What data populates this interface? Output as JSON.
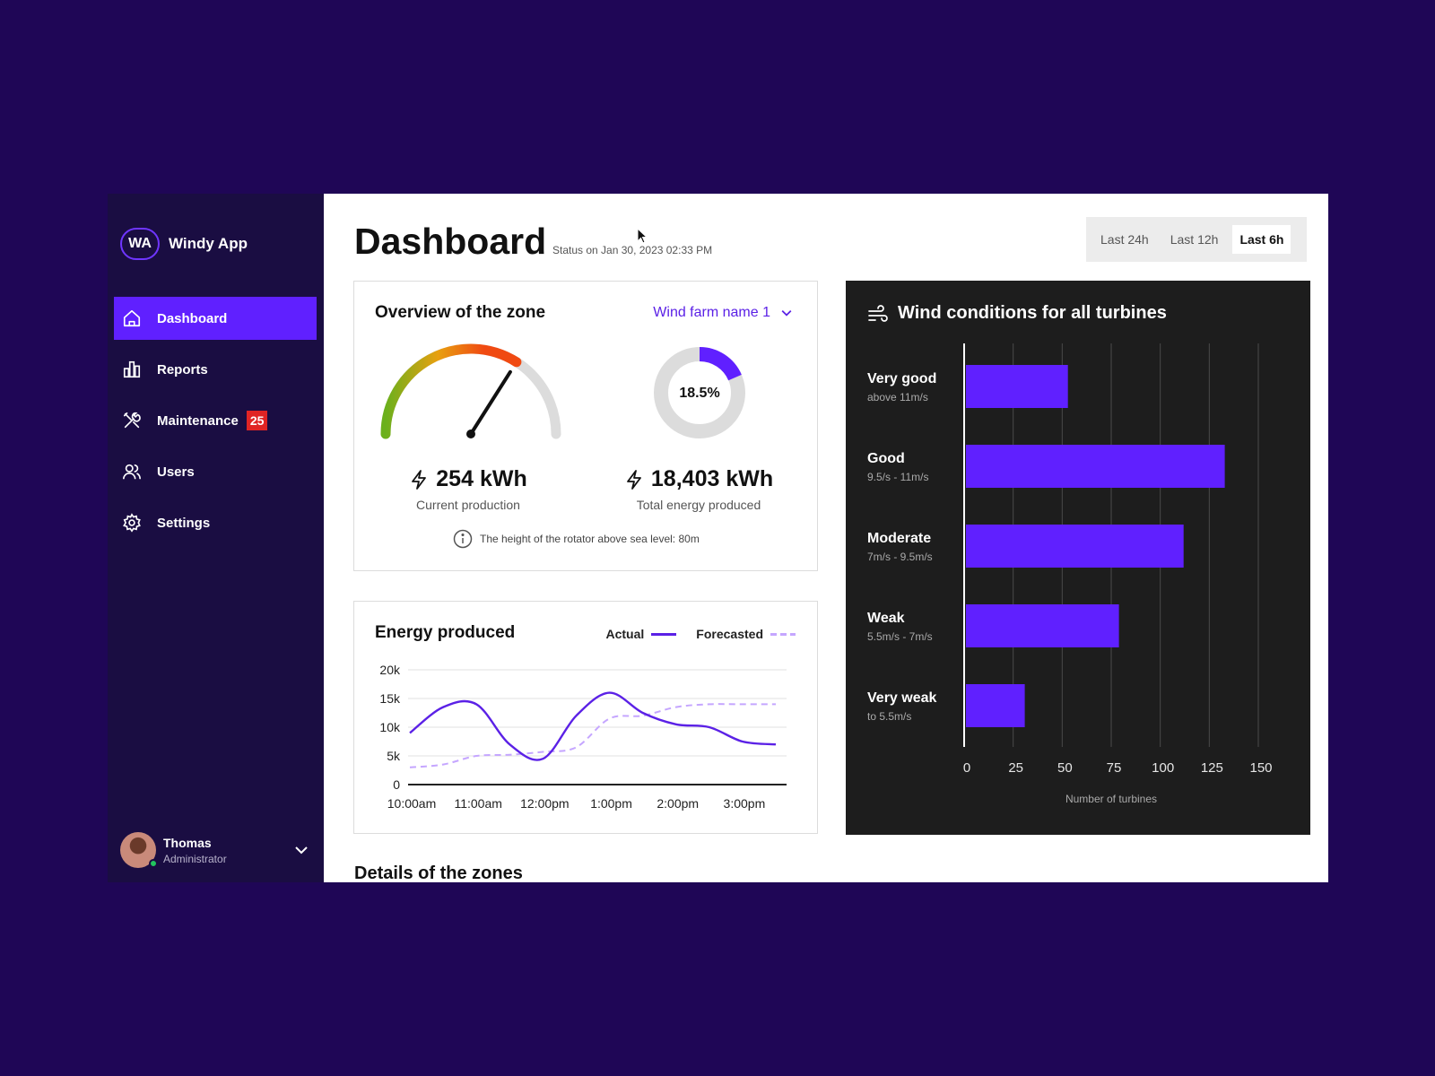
{
  "app": {
    "badge": "WA",
    "name": "Windy App"
  },
  "nav": [
    {
      "label": "Dashboard",
      "icon": "home-icon",
      "active": true
    },
    {
      "label": "Reports",
      "icon": "bar-chart-icon",
      "active": false
    },
    {
      "label": "Maintenance",
      "icon": "tools-icon",
      "active": false,
      "badge": "25"
    },
    {
      "label": "Users",
      "icon": "users-icon",
      "active": false
    },
    {
      "label": "Settings",
      "icon": "gear-icon",
      "active": false
    }
  ],
  "user": {
    "name": "Thomas",
    "role": "Administrator"
  },
  "header": {
    "title": "Dashboard",
    "status": "Status on Jan 30, 2023 02:33 PM"
  },
  "ranges": [
    {
      "label": "Last 24h",
      "active": false
    },
    {
      "label": "Last 12h",
      "active": false
    },
    {
      "label": "Last 6h",
      "active": true
    }
  ],
  "overview": {
    "title": "Overview of the zone",
    "farm": "Wind farm name 1",
    "gauge_fraction": 0.68,
    "donut_fraction": 0.185,
    "donut_label": "18.5%",
    "current": {
      "value": "254 kWh",
      "label": "Current production"
    },
    "total": {
      "value": "18,403 kWh",
      "label": "Total energy produced"
    },
    "info": "The height of the rotator above sea level: 80m"
  },
  "energy": {
    "title": "Energy produced",
    "legend_actual": "Actual",
    "legend_forecast": "Forecasted"
  },
  "wind": {
    "title": "Wind conditions for all turbines"
  },
  "details_title": "Details of the zones",
  "colors": {
    "accent": "#5b21e6",
    "sidebar": "#1a0d42",
    "backdrop": "#1f0656",
    "bar": "#6020ff"
  },
  "chart_data": [
    {
      "type": "line",
      "x": [
        "10:00am",
        "10:30am",
        "11:00am",
        "11:30am",
        "12:00pm",
        "12:30pm",
        "1:00pm",
        "1:30pm",
        "2:00pm",
        "2:30pm",
        "3:00pm",
        "3:15pm"
      ],
      "xticks": [
        "10:00am",
        "11:00am",
        "12:00pm",
        "1:00pm",
        "2:00pm",
        "3:00pm"
      ],
      "series": [
        {
          "name": "Actual",
          "values": [
            9000,
            13500,
            14000,
            7000,
            4500,
            12000,
            16000,
            12500,
            10500,
            10000,
            7500,
            7000
          ]
        },
        {
          "name": "Forecasted",
          "values": [
            3000,
            3500,
            5000,
            5200,
            5700,
            6500,
            11500,
            12000,
            13500,
            14000,
            14000,
            14000
          ]
        }
      ],
      "yticks": [
        "0",
        "5k",
        "10k",
        "15k",
        "20k"
      ],
      "ylim": [
        0,
        20000
      ],
      "grid": true
    },
    {
      "type": "bar",
      "orientation": "horizontal",
      "categories": [
        "Very good",
        "Good",
        "Moderate",
        "Weak",
        "Very weak"
      ],
      "subcategories": [
        "above 11m/s",
        "9.5/s - 11m/s",
        "7m/s - 9.5m/s",
        "5.5m/s - 7m/s",
        "to 5.5m/s"
      ],
      "values": [
        52,
        132,
        111,
        78,
        30
      ],
      "xticks": [
        "0",
        "25",
        "50",
        "75",
        "100",
        "125",
        "150"
      ],
      "xlim": [
        0,
        150
      ],
      "xlabel": "Number of turbines",
      "grid": true
    }
  ]
}
